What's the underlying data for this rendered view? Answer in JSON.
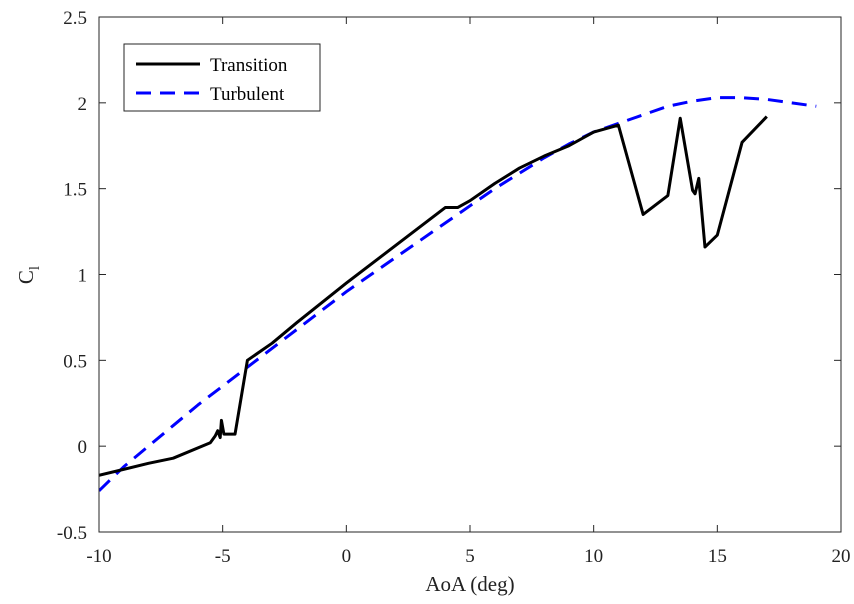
{
  "chart_data": {
    "type": "line",
    "xlabel": "AoA (deg)",
    "ylabel": {
      "main": "C",
      "sub": "l"
    },
    "xlim": [
      -10,
      20
    ],
    "ylim": [
      -0.5,
      2.5
    ],
    "xticks": [
      -10,
      -5,
      0,
      5,
      10,
      15,
      20
    ],
    "xtick_labels": [
      "-10",
      "-5",
      "0",
      "5",
      "10",
      "15",
      "20"
    ],
    "yticks": [
      -0.5,
      0,
      0.5,
      1,
      1.5,
      2,
      2.5
    ],
    "ytick_labels": [
      "-0.5",
      "0",
      "0.5",
      "1",
      "1.5",
      "2",
      "2.5"
    ],
    "grid": false,
    "legend": {
      "placement": "top-left"
    },
    "series": [
      {
        "name": "Transition",
        "color": "#000000",
        "style": "solid",
        "points": [
          [
            -10,
            -0.17
          ],
          [
            -8,
            -0.1
          ],
          [
            -7,
            -0.07
          ],
          [
            -5.5,
            0.02
          ],
          [
            -5.3,
            0.06
          ],
          [
            -5.2,
            0.09
          ],
          [
            -5.1,
            0.05
          ],
          [
            -5.05,
            0.15
          ],
          [
            -4.95,
            0.07
          ],
          [
            -4.5,
            0.07
          ],
          [
            -4,
            0.5
          ],
          [
            -3,
            0.6
          ],
          [
            -2,
            0.72
          ],
          [
            0,
            0.95
          ],
          [
            2,
            1.17
          ],
          [
            4,
            1.39
          ],
          [
            4.5,
            1.39
          ],
          [
            5,
            1.43
          ],
          [
            6,
            1.53
          ],
          [
            7,
            1.62
          ],
          [
            8,
            1.69
          ],
          [
            9,
            1.75
          ],
          [
            10,
            1.83
          ],
          [
            11,
            1.87
          ],
          [
            12,
            1.35
          ],
          [
            13,
            1.46
          ],
          [
            13.5,
            1.91
          ],
          [
            14,
            1.49
          ],
          [
            14.1,
            1.47
          ],
          [
            14.25,
            1.56
          ],
          [
            14.5,
            1.16
          ],
          [
            15,
            1.23
          ],
          [
            16,
            1.77
          ],
          [
            17,
            1.92
          ]
        ]
      },
      {
        "name": "Turbulent",
        "color": "#0000ff",
        "style": "dashed",
        "points": [
          [
            -10,
            -0.26
          ],
          [
            -9,
            -0.12
          ],
          [
            -8,
            0.0
          ],
          [
            -7,
            0.12
          ],
          [
            -6,
            0.24
          ],
          [
            -5,
            0.35
          ],
          [
            -4,
            0.46
          ],
          [
            -3,
            0.57
          ],
          [
            -2,
            0.68
          ],
          [
            -1,
            0.79
          ],
          [
            0,
            0.9
          ],
          [
            1,
            1.0
          ],
          [
            2,
            1.1
          ],
          [
            3,
            1.2
          ],
          [
            4,
            1.3
          ],
          [
            5,
            1.4
          ],
          [
            6,
            1.5
          ],
          [
            7,
            1.59
          ],
          [
            8,
            1.68
          ],
          [
            9,
            1.76
          ],
          [
            10,
            1.83
          ],
          [
            11,
            1.88
          ],
          [
            12,
            1.93
          ],
          [
            13,
            1.98
          ],
          [
            14,
            2.01
          ],
          [
            15,
            2.03
          ],
          [
            16,
            2.03
          ],
          [
            17,
            2.02
          ],
          [
            18,
            2.0
          ],
          [
            19,
            1.98
          ]
        ]
      }
    ]
  }
}
